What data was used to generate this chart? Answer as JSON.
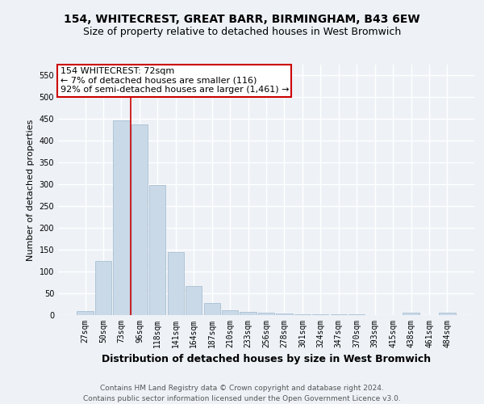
{
  "title": "154, WHITECREST, GREAT BARR, BIRMINGHAM, B43 6EW",
  "subtitle": "Size of property relative to detached houses in West Bromwich",
  "xlabel": "Distribution of detached houses by size in West Bromwich",
  "ylabel": "Number of detached properties",
  "categories": [
    "27sqm",
    "50sqm",
    "73sqm",
    "96sqm",
    "118sqm",
    "141sqm",
    "164sqm",
    "187sqm",
    "210sqm",
    "233sqm",
    "256sqm",
    "278sqm",
    "301sqm",
    "324sqm",
    "347sqm",
    "370sqm",
    "393sqm",
    "415sqm",
    "438sqm",
    "461sqm",
    "484sqm"
  ],
  "values": [
    10,
    125,
    447,
    437,
    298,
    145,
    67,
    27,
    12,
    8,
    5,
    3,
    1,
    1,
    1,
    1,
    0,
    0,
    5,
    0,
    5
  ],
  "bar_color": "#c9d9e8",
  "bar_edge_color": "#a0b8cc",
  "ylim": [
    0,
    575
  ],
  "yticks": [
    0,
    50,
    100,
    150,
    200,
    250,
    300,
    350,
    400,
    450,
    500,
    550
  ],
  "property_label": "154 WHITECREST: 72sqm",
  "annotation_line1": "← 7% of detached houses are smaller (116)",
  "annotation_line2": "92% of semi-detached houses are larger (1,461) →",
  "vline_x": 2.5,
  "annotation_box_color": "#ffffff",
  "annotation_box_edge": "#cc0000",
  "footer_line1": "Contains HM Land Registry data © Crown copyright and database right 2024.",
  "footer_line2": "Contains public sector information licensed under the Open Government Licence v3.0.",
  "background_color": "#eef2f7",
  "grid_color": "#ffffff",
  "title_fontsize": 10,
  "subtitle_fontsize": 9,
  "ylabel_fontsize": 8,
  "xlabel_fontsize": 9,
  "tick_fontsize": 7,
  "annotation_fontsize": 8,
  "footer_fontsize": 6.5
}
